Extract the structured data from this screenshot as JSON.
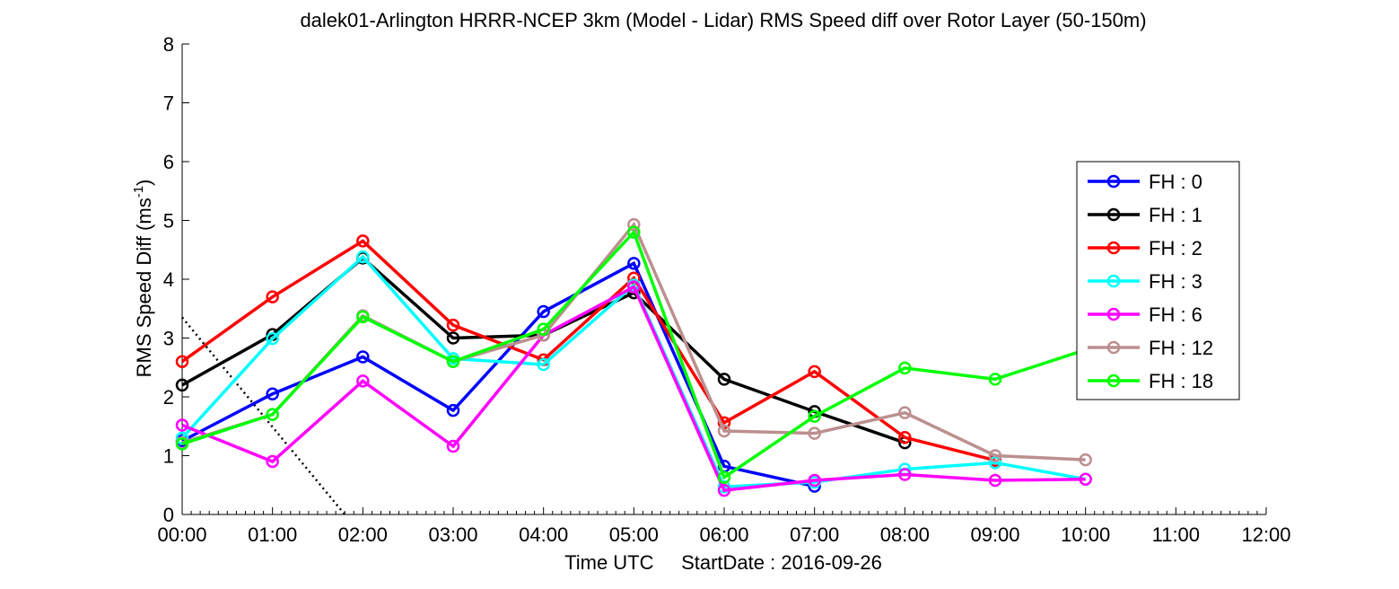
{
  "chart_data": {
    "type": "line",
    "title": "dalek01-Arlington HRRR-NCEP 3km (Model - Lidar) RMS Speed diff over Rotor Layer (50-150m)",
    "ylabel": "RMS Speed Diff (ms",
    "ylabel_sup": "-1",
    "ylabel_end": ")",
    "xlabel": "Time UTC     StartDate : 2016-09-26",
    "xlim": [
      0,
      12
    ],
    "ylim": [
      0,
      8
    ],
    "x_ticks": [
      "00:00",
      "01:00",
      "02:00",
      "03:00",
      "04:00",
      "05:00",
      "06:00",
      "07:00",
      "08:00",
      "09:00",
      "10:00",
      "11:00",
      "12:00"
    ],
    "y_ticks": [
      "0",
      "1",
      "2",
      "3",
      "4",
      "5",
      "6",
      "7",
      "8"
    ],
    "legend_position": "right",
    "series": [
      {
        "name": "FH : 0",
        "color": "#0000ff",
        "x": [
          0,
          1,
          2,
          3,
          4,
          5,
          6,
          7
        ],
        "y": [
          1.25,
          2.05,
          2.68,
          1.77,
          3.45,
          4.27,
          0.82,
          0.48
        ]
      },
      {
        "name": "FH : 1",
        "color": "#000000",
        "x": [
          0,
          1,
          2,
          3,
          4,
          5,
          6,
          7,
          8
        ],
        "y": [
          2.2,
          3.06,
          4.36,
          3.0,
          3.05,
          3.77,
          2.3,
          1.75,
          1.22
        ]
      },
      {
        "name": "FH : 2",
        "color": "#ff0000",
        "x": [
          0,
          1,
          2,
          3,
          4,
          5,
          6,
          7,
          8,
          9
        ],
        "y": [
          2.6,
          3.7,
          4.65,
          3.22,
          2.63,
          4.02,
          1.56,
          2.43,
          1.31,
          0.92
        ]
      },
      {
        "name": "FH : 3",
        "color": "#00ffff",
        "x": [
          0,
          1,
          2,
          3,
          4,
          5,
          6,
          7,
          8,
          9,
          10
        ],
        "y": [
          1.3,
          2.99,
          4.38,
          2.65,
          2.55,
          3.9,
          0.47,
          0.55,
          0.77,
          0.88,
          0.6
        ]
      },
      {
        "name": "FH : 6",
        "color": "#ff00ff",
        "x": [
          0,
          1,
          2,
          3,
          4,
          5,
          6,
          7,
          8,
          9,
          10
        ],
        "y": [
          1.52,
          0.9,
          2.27,
          1.16,
          3.05,
          3.87,
          0.41,
          0.58,
          0.68,
          0.58,
          0.6
        ]
      },
      {
        "name": "FH : 12",
        "color": "#bc8f8f",
        "x": [
          0,
          1,
          2,
          3,
          4,
          5,
          6,
          7,
          8,
          9,
          10
        ],
        "y": [
          1.22,
          1.7,
          3.38,
          2.6,
          3.05,
          4.93,
          1.42,
          1.38,
          1.73,
          1.0,
          0.93
        ]
      },
      {
        "name": "FH : 18",
        "color": "#00ff00",
        "x": [
          0,
          1,
          2,
          3,
          4,
          5,
          6,
          7,
          8,
          9,
          10
        ],
        "y": [
          1.2,
          1.7,
          3.36,
          2.6,
          3.15,
          4.8,
          0.63,
          1.67,
          2.49,
          2.3,
          2.8
        ]
      }
    ],
    "reference_line": {
      "style": "dotted",
      "color": "#000000",
      "x": [
        0,
        1.8
      ],
      "y": [
        3.35,
        0
      ]
    }
  }
}
